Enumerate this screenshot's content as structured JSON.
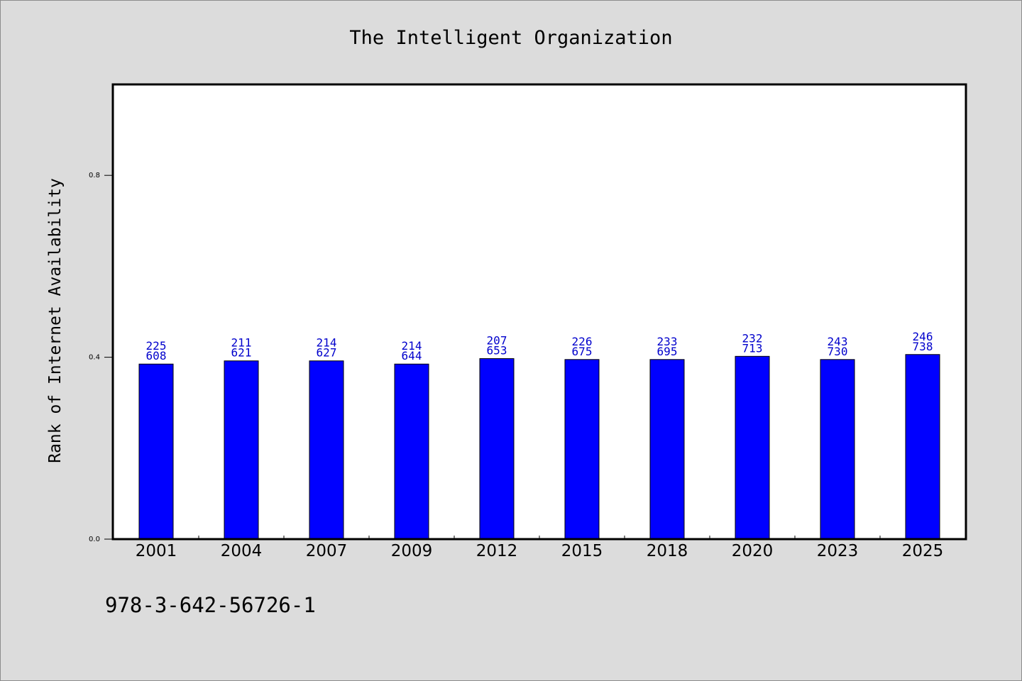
{
  "chart_data": {
    "type": "bar",
    "title": "The Intelligent Organization",
    "xlabel": "",
    "ylabel": "Rank of Internet Availability",
    "categories": [
      "2001",
      "2004",
      "2007",
      "2009",
      "2012",
      "2015",
      "2018",
      "2020",
      "2023",
      "2025"
    ],
    "series": [
      {
        "values": [
          0.385,
          0.392,
          0.392,
          0.385,
          0.397,
          0.395,
          0.395,
          0.402,
          0.395,
          0.406
        ],
        "labels": [
          [
            "225",
            "608"
          ],
          [
            "211",
            "621"
          ],
          [
            "214",
            "627"
          ],
          [
            "214",
            "644"
          ],
          [
            "207",
            "653"
          ],
          [
            "226",
            "675"
          ],
          [
            "233",
            "695"
          ],
          [
            "232",
            "713"
          ],
          [
            "243",
            "730"
          ],
          [
            "246",
            "738"
          ]
        ]
      }
    ],
    "ylim": [
      0.0,
      1.0
    ],
    "yticks": [
      0.0,
      0.4,
      0.8
    ],
    "ytick_labels": [
      "0.0",
      "0.4",
      "0.8"
    ],
    "grid": false,
    "bar_color": "#0000ff",
    "label_color": "#0000cc",
    "background": "#dcdcdc",
    "plot_background": "#ffffff"
  },
  "footnote": "978-3-642-56726-1"
}
